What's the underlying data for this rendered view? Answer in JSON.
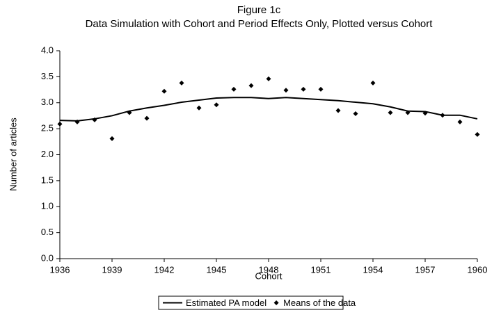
{
  "chart_data": {
    "type": "line",
    "title": "Figure 1c",
    "subtitle": "Data Simulation with Cohort and Period Effects Only, Plotted versus Cohort",
    "x_label": "Cohort",
    "y_label": "Number of articles",
    "x": [
      1936,
      1937,
      1938,
      1939,
      1940,
      1941,
      1942,
      1943,
      1944,
      1945,
      1946,
      1947,
      1948,
      1949,
      1950,
      1951,
      1952,
      1953,
      1954,
      1955,
      1956,
      1957,
      1958,
      1959,
      1960
    ],
    "series": [
      {
        "name": "Estimated PA model",
        "type": "line",
        "color": "#000000",
        "values": [
          2.66,
          2.65,
          2.69,
          2.75,
          2.84,
          2.9,
          2.95,
          3.01,
          3.05,
          3.09,
          3.1,
          3.1,
          3.08,
          3.1,
          3.08,
          3.06,
          3.04,
          3.01,
          2.98,
          2.92,
          2.84,
          2.83,
          2.76,
          2.76,
          2.69
        ]
      },
      {
        "name": "Means of the data",
        "type": "scatter",
        "color": "#000000",
        "values": [
          2.59,
          2.63,
          2.67,
          2.31,
          2.81,
          2.7,
          3.22,
          3.38,
          2.9,
          2.96,
          3.26,
          3.33,
          3.46,
          3.24,
          3.26,
          3.26,
          2.85,
          2.79,
          3.38,
          2.81,
          2.81,
          2.8,
          2.76,
          2.63,
          2.39
        ]
      }
    ],
    "xlim": [
      1936,
      1960
    ],
    "xticks": [
      1936,
      1939,
      1942,
      1945,
      1948,
      1951,
      1954,
      1957,
      1960
    ],
    "ylim": [
      0,
      4
    ],
    "yticks": [
      {
        "value": 0,
        "label": "0.0"
      },
      0.5,
      {
        "value": 1,
        "label": "1.0"
      },
      1.5,
      {
        "value": 2,
        "label": "2.0"
      },
      2.5,
      {
        "value": 3,
        "label": "3.0"
      },
      3.5,
      {
        "value": 4,
        "label": "4.0"
      }
    ],
    "grid": false,
    "legend": "bottom"
  }
}
